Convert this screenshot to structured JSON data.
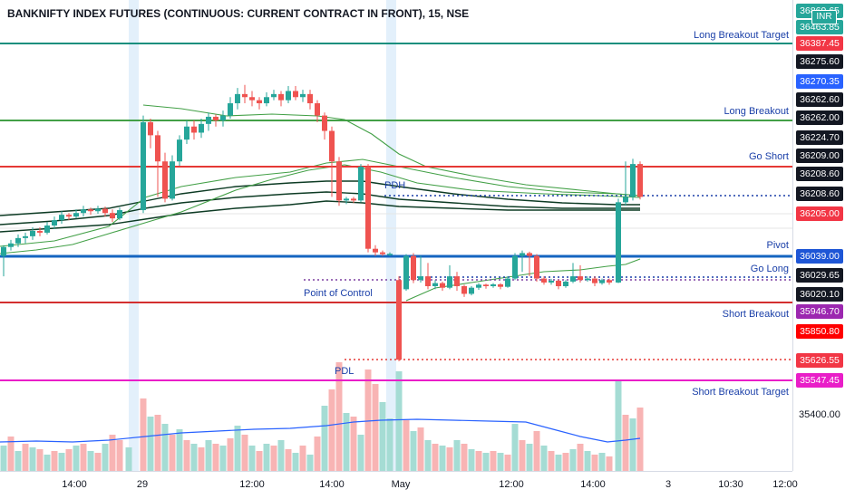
{
  "chart_title": "BANKNIFTY INDEX FUTURES (CONTINUOUS: CURRENT CONTRACT IN FRONT), 15, NSE",
  "currency_badge": "INR",
  "chart_data": {
    "type": "candlestick",
    "symbol": "BANKNIFTY INDEX FUTURES (CONTINUOUS: CURRENT CONTRACT IN FRONT)",
    "interval": "15",
    "exchange": "NSE",
    "x_tick_labels": [
      "14:00",
      "29",
      "12:00",
      "14:00",
      "May",
      "12:00",
      "14:00",
      "3",
      "10:30",
      "12:00"
    ],
    "price_axis_labels": [
      "35400.00"
    ],
    "level_lines": [
      {
        "label": "Long Breakout Target",
        "price": 36387.45,
        "color": "#1a8f7e",
        "style": "solid"
      },
      {
        "label": "Long Breakout",
        "price": 36262.0,
        "color": "#43a047",
        "style": "solid"
      },
      {
        "label": "Go Short",
        "price": 36209.0,
        "color": "#e53935",
        "style": "solid"
      },
      {
        "label": "PDH",
        "price": 36208.6,
        "color": "#1a3fa8",
        "style": "dotted"
      },
      {
        "label": "Pivot",
        "price": 36039.0,
        "color": "#1565c0",
        "style": "solid"
      },
      {
        "label": "Go Long",
        "price": 36029.65,
        "color": "#1a3fa8",
        "style": "dotted"
      },
      {
        "label": "Point of Control",
        "price": 36020.1,
        "color": "#7b3fa0",
        "style": "dotted"
      },
      {
        "label": "Short Breakout",
        "price": 35946.7,
        "color": "#d32f2f",
        "style": "solid"
      },
      {
        "label": "PDL",
        "price": 35626.55,
        "color": "#e53935",
        "style": "dotted"
      },
      {
        "label": "Short Breakout Target",
        "price": 35547.45,
        "color": "#e91ec8",
        "style": "solid"
      }
    ],
    "price_badges": [
      {
        "text": "36869.65",
        "bg": "#26a69a"
      },
      {
        "text": "36463.85",
        "bg": "#26a69a"
      },
      {
        "text": "36387.45",
        "bg": "#f23645"
      },
      {
        "text": "36275.60",
        "bg": "#131722"
      },
      {
        "text": "36270.35",
        "bg": "#2962ff"
      },
      {
        "text": "36262.60",
        "bg": "#131722"
      },
      {
        "text": "36262.00",
        "bg": "#131722"
      },
      {
        "text": "36224.70",
        "bg": "#131722"
      },
      {
        "text": "36209.00",
        "bg": "#131722"
      },
      {
        "text": "36208.60",
        "bg": "#131722"
      },
      {
        "text": "36208.60",
        "bg": "#131722"
      },
      {
        "text": "36205.00",
        "bg": "#f23645"
      },
      {
        "text": "36039.00",
        "bg": "#1e56d6"
      },
      {
        "text": "36029.65",
        "bg": "#131722"
      },
      {
        "text": "36020.10",
        "bg": "#131722"
      },
      {
        "text": "35946.70",
        "bg": "#9c27b0"
      },
      {
        "text": "35850.80",
        "bg": "#ff0000"
      },
      {
        "text": "35626.55",
        "bg": "#f23645"
      },
      {
        "text": "35547.45",
        "bg": "#e91ec8"
      }
    ],
    "last_price": 36205.0,
    "colors": {
      "up": "#26a69a",
      "down": "#ef5350",
      "vol_up": "#a5dcd4",
      "vol_down": "#f8b4b4",
      "vol_ma": "#2962ff",
      "ma_dark": "#0d3b24",
      "ma_green": "#43a047"
    }
  }
}
